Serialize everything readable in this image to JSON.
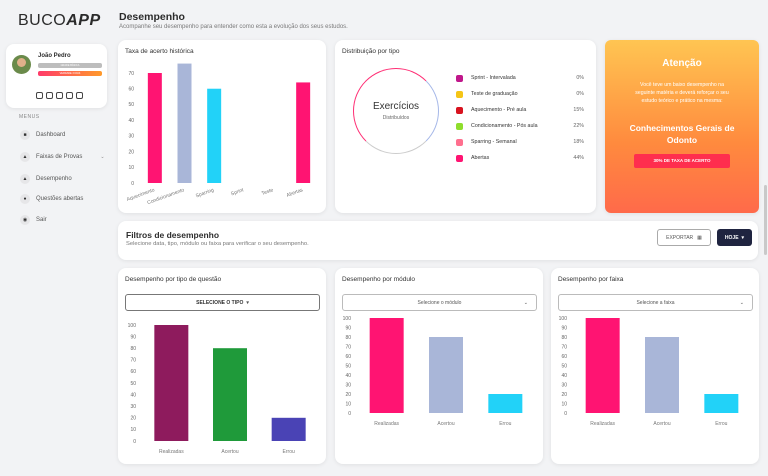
{
  "app": {
    "logo_a": "BUCO",
    "logo_b": "APP"
  },
  "page": {
    "title": "Desempenho",
    "subtitle": "Acompanhe seu desempenho para entender como esta a evolução dos seus estudos."
  },
  "profile": {
    "name": "João Pedro",
    "tag1": "GRADE BÁSICA",
    "tag2": "VERDADE 3 DIAS"
  },
  "sidebar": {
    "menus_label": "MENUS",
    "items": [
      {
        "label": "Dashboard",
        "icon": "dashboard-icon"
      },
      {
        "label": "Faixas de Provas",
        "icon": "exams-icon"
      },
      {
        "label": "Desempenho",
        "icon": "chart-icon"
      },
      {
        "label": "Questões abertas",
        "icon": "questions-icon"
      },
      {
        "label": "Sair",
        "icon": "logout-icon"
      }
    ]
  },
  "historic": {
    "title": "Taxa de acerto histórica"
  },
  "distribution": {
    "title": "Distribuição por tipo",
    "center_label": "Exercícios",
    "center_sub": "Distribuídos",
    "legend": [
      {
        "label": "Sprint - Intervalada",
        "pct": "0%",
        "color": "#c0178b"
      },
      {
        "label": "Teste de graduação",
        "pct": "0%",
        "color": "#f5c516"
      },
      {
        "label": "Aquecimento - Pré aula",
        "pct": "15%",
        "color": "#d8131f"
      },
      {
        "label": "Condicionamento - Pós aula",
        "pct": "22%",
        "color": "#8fde2c"
      },
      {
        "label": "Sparring - Semanal",
        "pct": "18%",
        "color": "#ff6f8e"
      },
      {
        "label": "Abertas",
        "pct": "44%",
        "color": "#ff1472"
      }
    ]
  },
  "alert": {
    "title": "Atenção",
    "text": "Você teve um baixo desempenho na seguinte matéria e deverá reforçar o seu estudo teórico e prático na mesma:",
    "subject": "Conhecimentos Gerais de Odonto",
    "button": "30% DE TAXA DE ACERTO"
  },
  "filters": {
    "title": "Filtros de desempenho",
    "subtitle": "Selecione data, tipo, módulo ou faixa para verificar o seu desempenho.",
    "export_label": "EXPORTAR",
    "period_label": "HOJE"
  },
  "by_type": {
    "title": "Desempenho por tipo de questão",
    "select": "SELECIONE O TIPO"
  },
  "by_module": {
    "title": "Desempenho por módulo",
    "select": "Selecione o módulo"
  },
  "by_band": {
    "title": "Desempenho por faixa",
    "select": "Selecione a faixa"
  },
  "chart_data": [
    {
      "type": "bar",
      "id": "historic",
      "categories": [
        "Aquecimento",
        "Condicionamento",
        "Sparring",
        "Sprint",
        "Teste",
        "Abertas"
      ],
      "values": [
        70,
        76,
        60,
        0,
        0,
        64
      ],
      "colors": [
        "#ff1472",
        "#a9b6d8",
        "#22d2f8",
        "#ff1472",
        "#ff1472",
        "#ff1472"
      ],
      "ylim": [
        0,
        80
      ],
      "yticks": [
        0,
        10,
        20,
        30,
        40,
        50,
        60,
        70
      ]
    },
    {
      "type": "bar",
      "id": "by_type",
      "categories": [
        "Realizadas",
        "Acertou",
        "Errou"
      ],
      "values": [
        100,
        80,
        20
      ],
      "colors": [
        "#8e1b5d",
        "#1f9a3a",
        "#4a43b5"
      ],
      "ylim": [
        0,
        100
      ],
      "yticks": [
        0,
        10,
        20,
        30,
        40,
        50,
        60,
        70,
        80,
        90,
        100
      ]
    },
    {
      "type": "bar",
      "id": "by_module",
      "categories": [
        "Realizadas",
        "Acertou",
        "Errou"
      ],
      "values": [
        100,
        80,
        20
      ],
      "colors": [
        "#ff1472",
        "#a9b6d8",
        "#22d2f8"
      ],
      "ylim": [
        0,
        100
      ],
      "yticks": [
        0,
        10,
        20,
        30,
        40,
        50,
        60,
        70,
        80,
        90,
        100
      ]
    },
    {
      "type": "bar",
      "id": "by_band",
      "categories": [
        "Realizadas",
        "Acertou",
        "Errou"
      ],
      "values": [
        100,
        80,
        20
      ],
      "colors": [
        "#ff1472",
        "#a9b6d8",
        "#22d2f8"
      ],
      "ylim": [
        0,
        100
      ],
      "yticks": [
        0,
        10,
        20,
        30,
        40,
        50,
        60,
        70,
        80,
        90,
        100
      ]
    }
  ]
}
